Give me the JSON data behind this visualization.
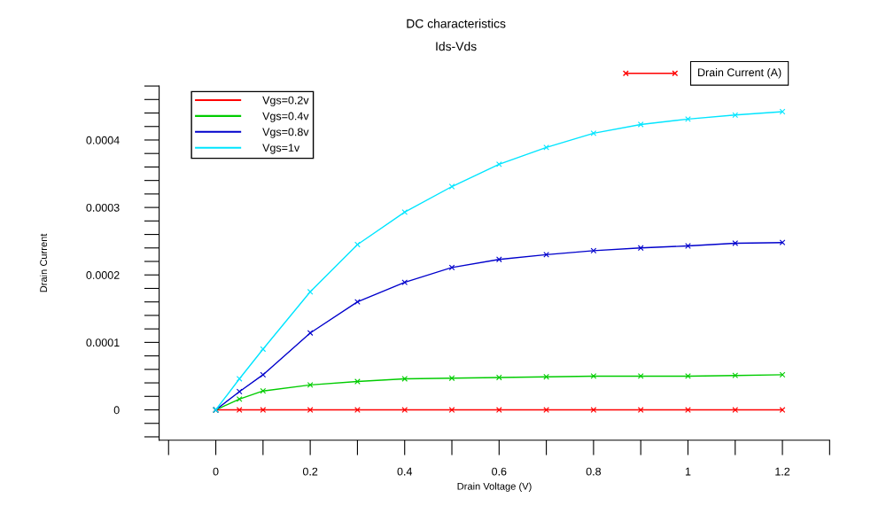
{
  "chart_data": {
    "type": "line",
    "title": "DC characteristics",
    "subtitle": "Ids-Vds",
    "xlabel": "Drain Voltage (V)",
    "ylabel": "Drain Current",
    "x": [
      0,
      0.05,
      0.1,
      0.2,
      0.3,
      0.4,
      0.5,
      0.6,
      0.7,
      0.8,
      0.9,
      1.0,
      1.1,
      1.2
    ],
    "series": [
      {
        "name": "Vgs=0.2v",
        "color": "#ff0000",
        "values": [
          0,
          0,
          0,
          0,
          0,
          0,
          0,
          0,
          0,
          0,
          0,
          0,
          0,
          0
        ]
      },
      {
        "name": "Vgs=0.4v",
        "color": "#00cc00",
        "values": [
          0,
          1.6e-05,
          2.8e-05,
          3.7e-05,
          4.2e-05,
          4.6e-05,
          4.7e-05,
          4.8e-05,
          4.9e-05,
          5e-05,
          5e-05,
          5e-05,
          5.1e-05,
          5.2e-05
        ]
      },
      {
        "name": "Vgs=0.8v",
        "color": "#0000cc",
        "values": [
          0,
          2.7e-05,
          5.2e-05,
          0.000114,
          0.00016,
          0.000189,
          0.000211,
          0.000223,
          0.00023,
          0.000236,
          0.00024,
          0.000243,
          0.000247,
          0.000248
        ]
      },
      {
        "name": "Vgs=1v",
        "color": "#00e5ff",
        "values": [
          0,
          4.6e-05,
          9e-05,
          0.000175,
          0.000245,
          0.000293,
          0.000331,
          0.000364,
          0.000389,
          0.00041,
          0.000423,
          0.000431,
          0.000437,
          0.000442
        ]
      }
    ],
    "annotations": [
      "Drain Current (A)"
    ],
    "xlim": [
      -0.12,
      1.3
    ],
    "ylim": [
      -4.5e-05,
      0.00048
    ],
    "xticks": [
      0,
      0.2,
      0.4,
      0.6,
      0.8,
      1,
      1.2
    ],
    "yticks": [
      0,
      0.0001,
      0.0002,
      0.0003,
      0.0004
    ],
    "legend": "top left",
    "marker": "cross",
    "line_style": "solid",
    "grid": false
  }
}
